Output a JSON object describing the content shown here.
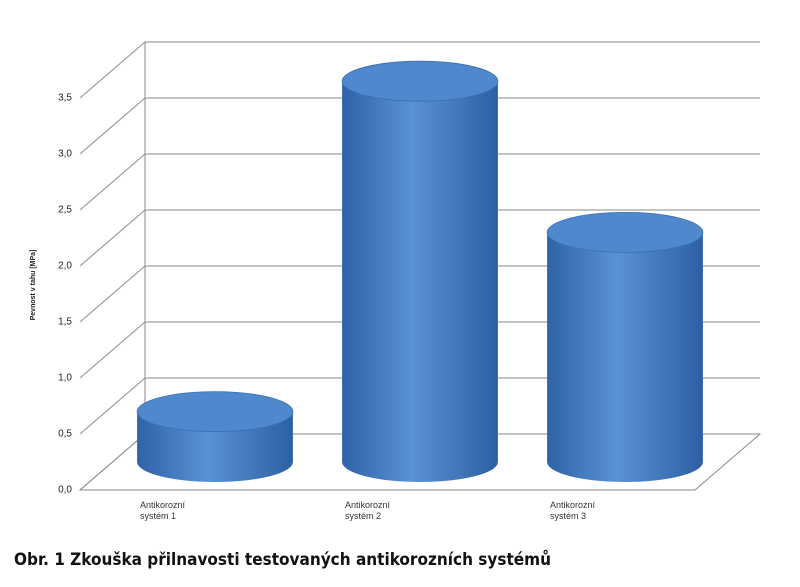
{
  "chart_data": {
    "type": "cylinder",
    "y_label": "Pevnost v tahu [MPa]",
    "categories": [
      "Antikorozní systém 1",
      "Antikorozní systém 2",
      "Antikorozní systém 3"
    ],
    "values": [
      0.45,
      3.4,
      2.05
    ],
    "color": "#4a80c4",
    "ylim": [
      0,
      3.5
    ],
    "yticks": [
      {
        "value": 0,
        "label": "0,0"
      },
      {
        "value": 0.5,
        "label": "0,5"
      },
      {
        "value": 1,
        "label": "1,0"
      },
      {
        "value": 1.5,
        "label": "1,5"
      },
      {
        "value": 2,
        "label": "2,0"
      },
      {
        "value": 2.5,
        "label": "2,5"
      },
      {
        "value": 3,
        "label": "3,0"
      },
      {
        "value": 3.5,
        "label": "3,5"
      }
    ],
    "grid": true
  },
  "caption": "Obr. 1 Zkouška přilnavosti testovaných antikorozních systémů"
}
